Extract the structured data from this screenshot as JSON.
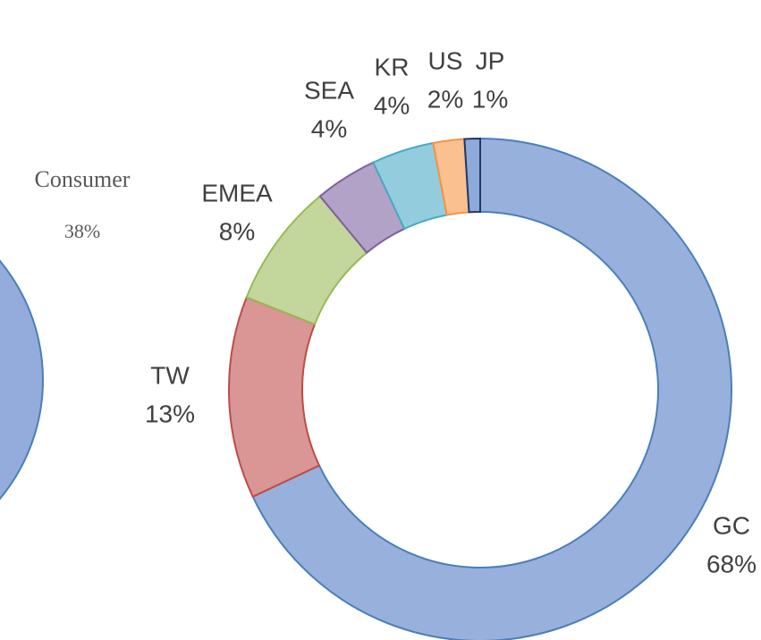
{
  "chart_data": [
    {
      "type": "pie",
      "categories": [
        "Consumer"
      ],
      "values": [
        38
      ],
      "value_labels": [
        "38%"
      ],
      "colors": [
        "#93acdb"
      ]
    },
    {
      "type": "donut",
      "categories": [
        "GC",
        "TW",
        "EMEA",
        "SEA",
        "KR",
        "US",
        "JP"
      ],
      "values": [
        68,
        13,
        8,
        4,
        4,
        2,
        1
      ],
      "value_labels": [
        "68%",
        "13%",
        "8%",
        "4%",
        "4%",
        "2%",
        "1%"
      ],
      "colors": [
        "#98b0dc",
        "#d99694",
        "#c3d69b",
        "#b3a2c7",
        "#93cddd",
        "#fac090",
        "#8eaadb"
      ]
    }
  ]
}
